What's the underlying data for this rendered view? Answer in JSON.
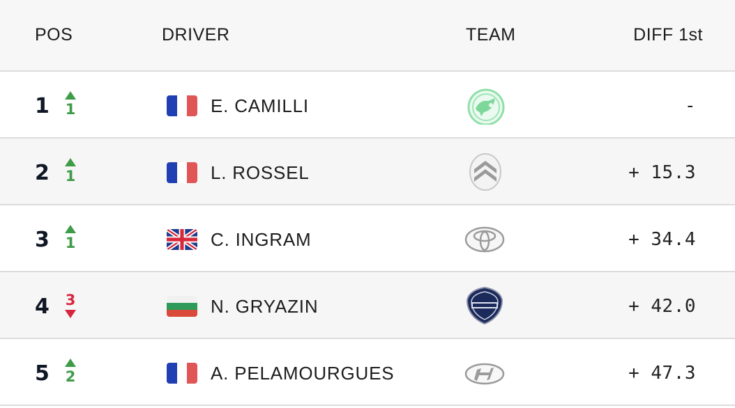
{
  "header": {
    "pos": "POS",
    "driver": "DRIVER",
    "team": "TEAM",
    "diff": "DIFF 1st"
  },
  "rows": [
    {
      "pos": "1",
      "change": {
        "direction": "up",
        "value": "1"
      },
      "flag": "france",
      "driver": "E. CAMILLI",
      "team_logo": "skoda-icon",
      "diff": "-"
    },
    {
      "pos": "2",
      "change": {
        "direction": "up",
        "value": "1"
      },
      "flag": "france",
      "driver": "L. ROSSEL",
      "team_logo": "citroen-icon",
      "diff": "+ 15.3"
    },
    {
      "pos": "3",
      "change": {
        "direction": "up",
        "value": "1"
      },
      "flag": "united-kingdom",
      "driver": "C. INGRAM",
      "team_logo": "toyota-icon",
      "diff": "+ 34.4"
    },
    {
      "pos": "4",
      "change": {
        "direction": "down",
        "value": "3"
      },
      "flag": "bulgaria",
      "driver": "N. GRYAZIN",
      "team_logo": "lancia-icon",
      "diff": "+ 42.0"
    },
    {
      "pos": "5",
      "change": {
        "direction": "up",
        "value": "2"
      },
      "flag": "france",
      "driver": "A. PELAMOURGUES",
      "team_logo": "hyundai-icon",
      "diff": "+ 47.3"
    }
  ],
  "colors": {
    "up": "#3e9b47",
    "down": "#d7263d",
    "header_bg": "#f7f7f7",
    "alt_row_bg": "#f6f6f6"
  }
}
